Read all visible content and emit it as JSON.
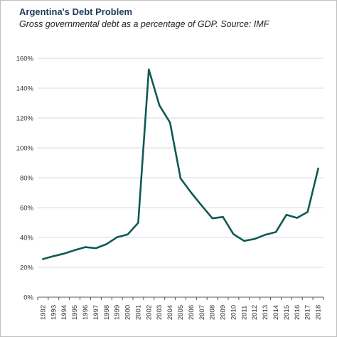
{
  "chart_data": {
    "type": "line",
    "title": "Argentina's Debt Problem",
    "subtitle": "Gross governmental debt as a percentage of GDP. Source: IMF",
    "xlabel": "",
    "ylabel": "",
    "ylim": [
      0,
      160
    ],
    "yticks": [
      0,
      20,
      40,
      60,
      80,
      100,
      120,
      140,
      160
    ],
    "ytick_labels": [
      "0%",
      "20%",
      "40%",
      "60%",
      "80%",
      "100%",
      "120%",
      "140%",
      "160%"
    ],
    "x": [
      "1992",
      "1993",
      "1994",
      "1995",
      "1996",
      "1997",
      "1998",
      "1999",
      "2000",
      "2001",
      "2002",
      "2003",
      "2004",
      "2005",
      "2006",
      "2007",
      "2008",
      "2009",
      "2010",
      "2011",
      "2012",
      "2013",
      "2014",
      "2015",
      "2016",
      "2017",
      "2018"
    ],
    "series": [
      {
        "values": [
          25.5,
          27.5,
          29.2,
          31.5,
          33.5,
          32.8,
          35.5,
          40.2,
          42.0,
          49.8,
          152.5,
          128.5,
          117.0,
          79.5,
          70.0,
          61.3,
          52.8,
          53.7,
          42.2,
          37.7,
          39.0,
          41.8,
          43.6,
          55.2,
          53.1,
          57.1,
          86.2
        ],
        "color": "#0f5a52"
      }
    ],
    "grid": "horizontal",
    "legend": "none"
  }
}
